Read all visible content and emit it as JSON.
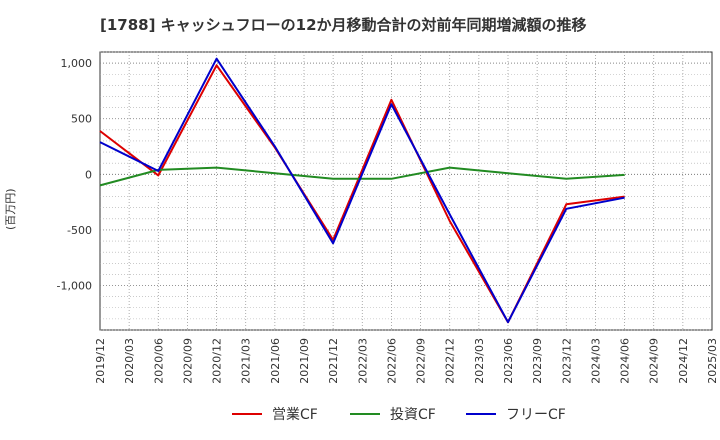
{
  "chart_data": {
    "type": "line",
    "title": "[1788]  キャッシュフローの12か月移動合計の対前年同期増減額の推移",
    "ylabel": "(百万円)",
    "xlabel": "",
    "ylim": [
      -1400,
      1100
    ],
    "yticks": [
      1000,
      500,
      0,
      -500,
      -1000
    ],
    "ytick_labels": [
      "1,000",
      "500",
      "0",
      "-500",
      "-1,000"
    ],
    "x": [
      "2019/12",
      "2020/03",
      "2020/06",
      "2020/09",
      "2020/12",
      "2021/03",
      "2021/06",
      "2021/09",
      "2021/12",
      "2022/03",
      "2022/06",
      "2022/09",
      "2022/12",
      "2023/03",
      "2023/06",
      "2023/09",
      "2023/12",
      "2024/03",
      "2024/06",
      "2024/09",
      "2024/12",
      "2025/03"
    ],
    "grid": true,
    "legend": "bottom",
    "series": [
      {
        "name": "営業CF",
        "color": "#dd0000",
        "values": [
          390,
          null,
          -10,
          null,
          980,
          null,
          240,
          null,
          -590,
          null,
          670,
          null,
          -420,
          null,
          -1330,
          null,
          -270,
          null,
          -200,
          null,
          null,
          null
        ]
      },
      {
        "name": "投資CF",
        "color": "#228b22",
        "values": [
          -100,
          null,
          40,
          null,
          60,
          null,
          10,
          null,
          -40,
          null,
          -40,
          null,
          60,
          null,
          10,
          null,
          -40,
          null,
          -5,
          null,
          null,
          null
        ]
      },
      {
        "name": "フリーCF",
        "color": "#0000cc",
        "values": [
          290,
          null,
          30,
          null,
          1040,
          null,
          250,
          null,
          -620,
          null,
          630,
          null,
          -360,
          null,
          -1330,
          null,
          -310,
          null,
          -210,
          null,
          null,
          null
        ]
      }
    ]
  }
}
